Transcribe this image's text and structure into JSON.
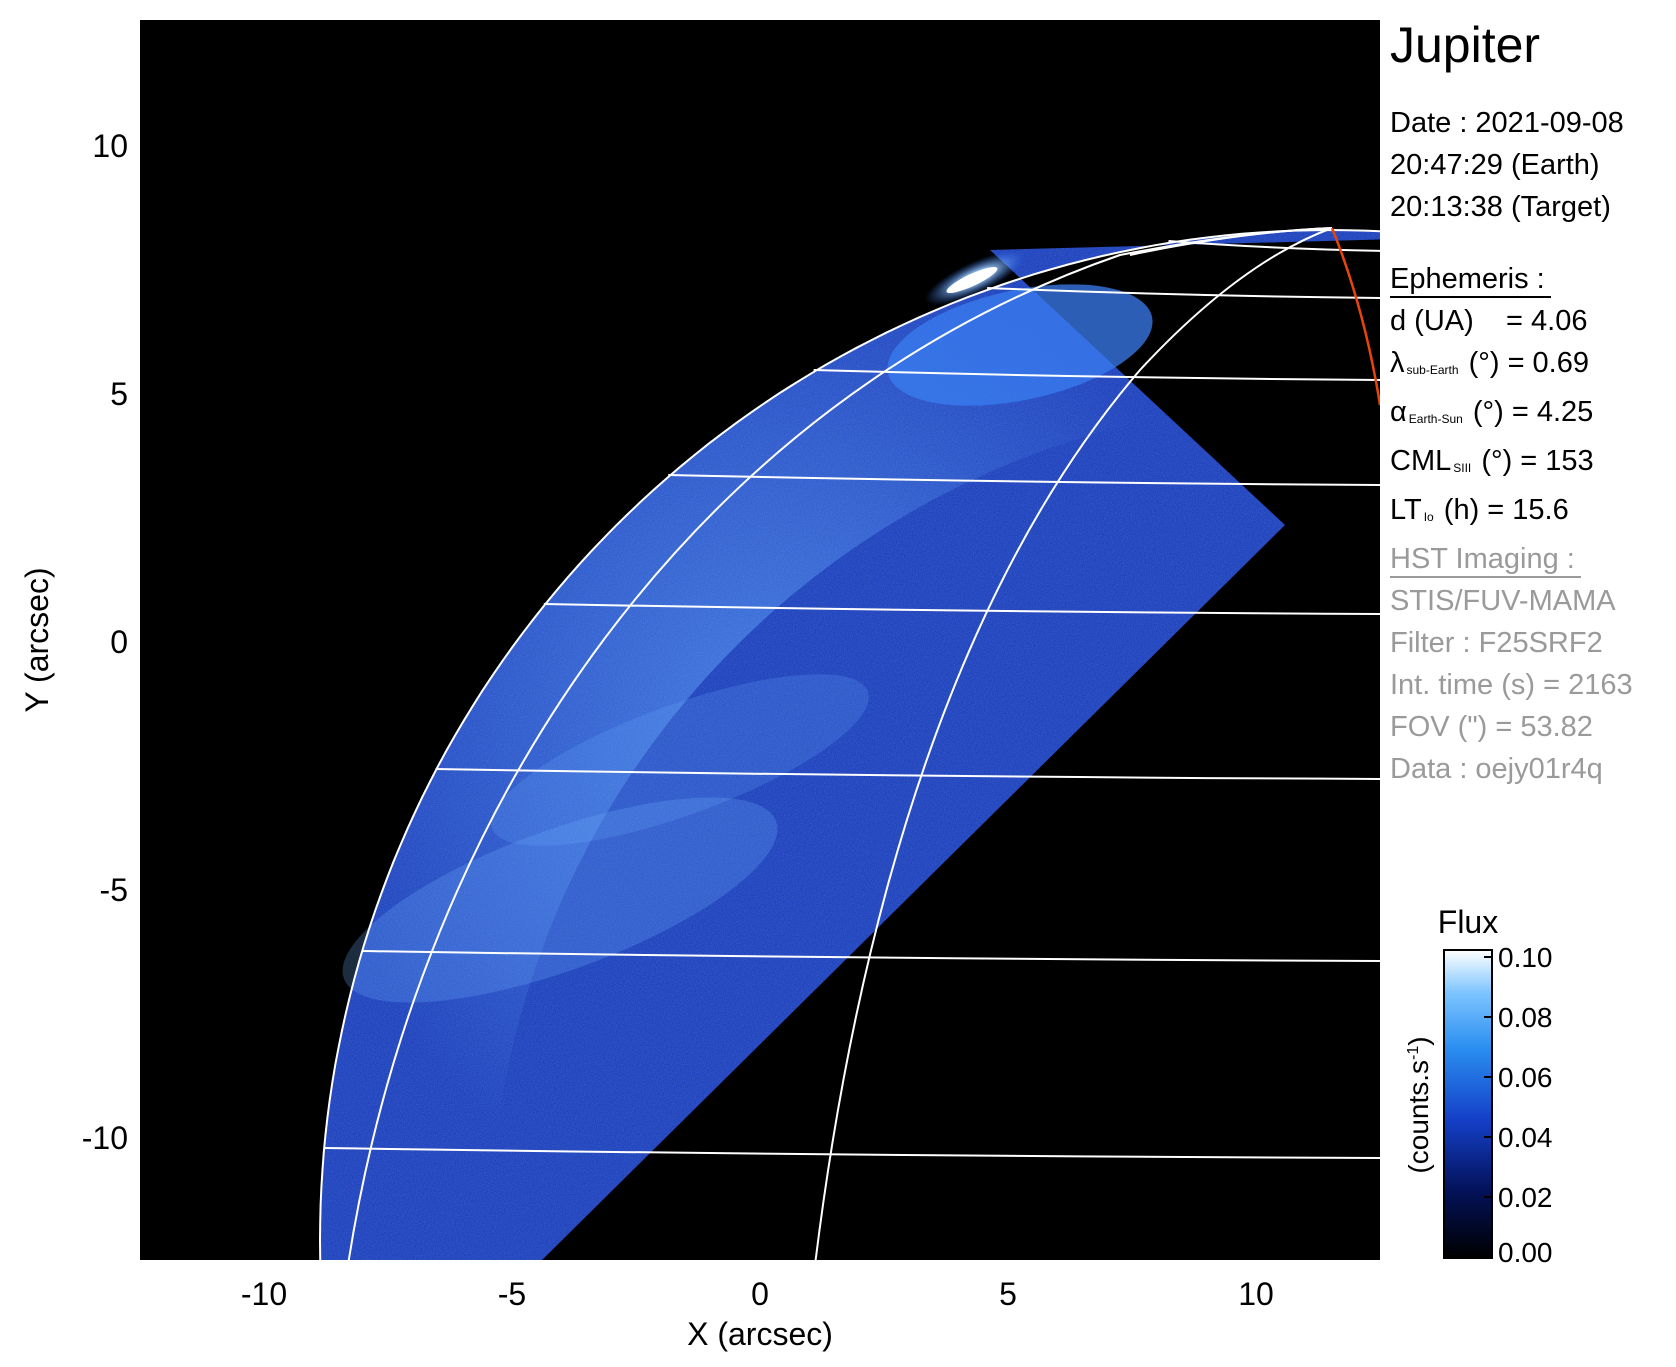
{
  "title": "Jupiter",
  "date": {
    "line1": "Date : 2021-09-08",
    "line2": "20:47:29 (Earth)",
    "line3": "20:13:38 (Target)"
  },
  "ephemeris": {
    "heading": "Ephemeris :",
    "d_label": "d (UA)",
    "d_value": "= 4.06",
    "lambda_symbol": "λ",
    "lambda_sub": "sub-Earth",
    "lambda_rest": "(°) = 0.69",
    "alpha_symbol": "α",
    "alpha_sub": "Earth-Sun",
    "alpha_rest": "(°) = 4.25",
    "cml_main": "CML",
    "cml_sub": "SIII",
    "cml_rest": "(°) = 153",
    "lt_main": "LT",
    "lt_sub": "Io",
    "lt_rest": "(h) = 15.6"
  },
  "hst": {
    "heading": "HST Imaging :",
    "instrument": "STIS/FUV-MAMA",
    "filter": "Filter : F25SRF2",
    "int_time": "Int. time (s) = 2163",
    "fov": "FOV (\") = 53.82",
    "data": "Data : oejy01r4q"
  },
  "axes": {
    "xlabel": "X (arcsec)",
    "ylabel": "Y (arcsec)",
    "xticks": [
      "-10",
      "-5",
      "0",
      "5",
      "10"
    ],
    "yticks": [
      "10",
      "5",
      "0",
      "-5",
      "-10"
    ]
  },
  "colorbar": {
    "title": "Flux",
    "unit_main": "(counts.s",
    "unit_sup": "-1",
    "unit_end": ")",
    "ticks": [
      "0.10",
      "0.08",
      "0.06",
      "0.04",
      "0.02",
      "0.00"
    ]
  },
  "colors": {
    "background": "#000000",
    "emission_dark": "#0a1f8c",
    "emission_mid": "#2a6fe6",
    "emission_bright": "#a9d2ff",
    "grid": "#ffffff",
    "terminator": "#e8450a"
  }
}
